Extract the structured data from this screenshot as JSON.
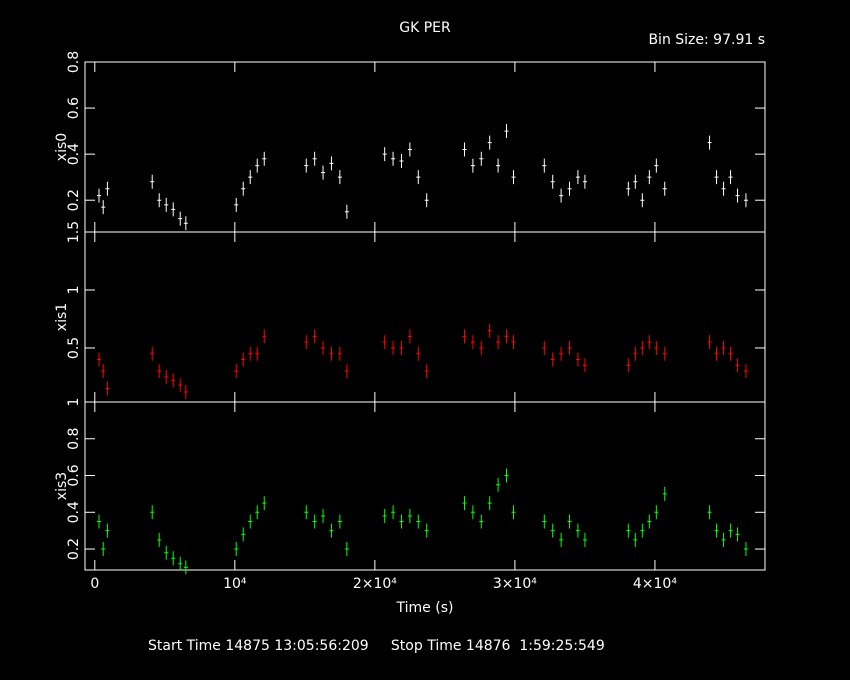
{
  "header": {
    "title": "GK PER",
    "subtitle": "Bin Size: 97.91 s",
    "footer": "Start Time 14875 13:05:56:209     Stop Time 14876  1:59:25:549"
  },
  "chart_data": [
    {
      "type": "scatter",
      "y_label": "xis0",
      "color": "#ffffff",
      "x": [
        300,
        600,
        900,
        4100,
        4600,
        5100,
        5600,
        6100,
        6500,
        10100,
        10600,
        11100,
        11600,
        12100,
        15100,
        15700,
        16300,
        16900,
        17500,
        18000,
        20700,
        21300,
        21900,
        22500,
        23100,
        23700,
        26400,
        27000,
        27600,
        28200,
        28800,
        29400,
        29900,
        32100,
        32700,
        33300,
        33900,
        34500,
        35000,
        38100,
        38600,
        39100,
        39600,
        40100,
        40700,
        43900,
        44400,
        44900,
        45400,
        45900,
        46500
      ],
      "values": [
        0.22,
        0.17,
        0.25,
        0.28,
        0.2,
        0.18,
        0.16,
        0.12,
        0.1,
        0.18,
        0.25,
        0.3,
        0.35,
        0.38,
        0.35,
        0.38,
        0.32,
        0.36,
        0.3,
        0.15,
        0.4,
        0.38,
        0.37,
        0.42,
        0.3,
        0.2,
        0.42,
        0.35,
        0.38,
        0.45,
        0.35,
        0.5,
        0.3,
        0.35,
        0.28,
        0.22,
        0.25,
        0.3,
        0.28,
        0.25,
        0.28,
        0.2,
        0.3,
        0.35,
        0.25,
        0.45,
        0.3,
        0.25,
        0.3,
        0.22,
        0.2
      ],
      "ylim": [
        0.062,
        0.8
      ],
      "yticks": [
        0.2,
        0.4,
        0.6,
        0.8
      ]
    },
    {
      "type": "scatter",
      "y_label": "xis1",
      "color": "#ff0000",
      "x": [
        300,
        600,
        900,
        4100,
        4600,
        5100,
        5600,
        6100,
        6500,
        10100,
        10600,
        11100,
        11600,
        12100,
        15100,
        15700,
        16300,
        16900,
        17500,
        18000,
        20700,
        21300,
        21900,
        22500,
        23100,
        23700,
        26400,
        27000,
        27600,
        28200,
        28800,
        29400,
        29900,
        32100,
        32700,
        33300,
        33900,
        34500,
        35000,
        38100,
        38600,
        39100,
        39600,
        40100,
        40700,
        43900,
        44400,
        44900,
        45400,
        45900,
        46500
      ],
      "values": [
        0.4,
        0.3,
        0.15,
        0.45,
        0.3,
        0.25,
        0.22,
        0.18,
        0.12,
        0.3,
        0.4,
        0.45,
        0.45,
        0.6,
        0.55,
        0.6,
        0.5,
        0.45,
        0.45,
        0.3,
        0.55,
        0.5,
        0.5,
        0.6,
        0.45,
        0.3,
        0.6,
        0.55,
        0.5,
        0.65,
        0.55,
        0.6,
        0.55,
        0.5,
        0.4,
        0.45,
        0.5,
        0.4,
        0.35,
        0.35,
        0.45,
        0.5,
        0.55,
        0.5,
        0.45,
        0.55,
        0.45,
        0.5,
        0.45,
        0.35,
        0.3
      ],
      "ylim": [
        0.034,
        1.5
      ],
      "yticks": [
        0.5,
        1,
        1.5
      ]
    },
    {
      "type": "scatter",
      "y_label": "xis3",
      "x_label": "Time (s)",
      "color": "#00ff00",
      "x": [
        300,
        600,
        900,
        4100,
        4600,
        5100,
        5600,
        6100,
        6500,
        10100,
        10600,
        11100,
        11600,
        12100,
        15100,
        15700,
        16300,
        16900,
        17500,
        18000,
        20700,
        21300,
        21900,
        22500,
        23100,
        23700,
        26400,
        27000,
        27600,
        28200,
        28800,
        29400,
        29900,
        32100,
        32700,
        33300,
        33900,
        34500,
        35000,
        38100,
        38600,
        39100,
        39600,
        40100,
        40700,
        43900,
        44400,
        44900,
        45400,
        45900,
        46500
      ],
      "values": [
        0.35,
        0.2,
        0.3,
        0.4,
        0.25,
        0.18,
        0.15,
        0.12,
        0.1,
        0.2,
        0.28,
        0.35,
        0.4,
        0.45,
        0.4,
        0.35,
        0.38,
        0.3,
        0.35,
        0.2,
        0.38,
        0.4,
        0.35,
        0.38,
        0.35,
        0.3,
        0.45,
        0.4,
        0.35,
        0.45,
        0.55,
        0.6,
        0.4,
        0.35,
        0.3,
        0.25,
        0.35,
        0.3,
        0.25,
        0.3,
        0.25,
        0.3,
        0.35,
        0.4,
        0.5,
        0.4,
        0.3,
        0.25,
        0.3,
        0.28,
        0.2
      ],
      "ylim": [
        0.086,
        1
      ],
      "yticks": [
        0.2,
        0.4,
        0.6,
        0.8,
        1
      ],
      "xlim": [
        -700,
        47860
      ],
      "xticks": [
        0,
        {
          "value": 10000,
          "label": "10⁴"
        },
        {
          "value": 20000,
          "label": "2×10⁴"
        },
        {
          "value": 30000,
          "label": "3×10⁴"
        },
        {
          "value": 40000,
          "label": "4×10⁴"
        }
      ]
    }
  ]
}
